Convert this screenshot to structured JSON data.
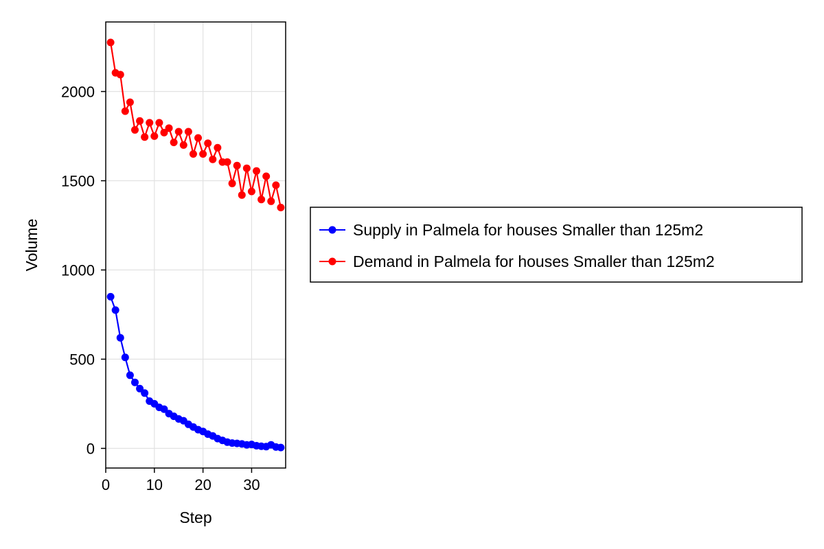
{
  "chart_data": {
    "type": "line",
    "xlabel": "Step",
    "ylabel": "Volume",
    "xlim": [
      0,
      37
    ],
    "ylim": [
      -110,
      2390
    ],
    "xticks": [
      0,
      10,
      20,
      30
    ],
    "yticks": [
      0,
      500,
      1000,
      1500,
      2000
    ],
    "grid": true,
    "legend_position": "right",
    "x": [
      1,
      2,
      3,
      4,
      5,
      6,
      7,
      8,
      9,
      10,
      11,
      12,
      13,
      14,
      15,
      16,
      17,
      18,
      19,
      20,
      21,
      22,
      23,
      24,
      25,
      26,
      27,
      28,
      29,
      30,
      31,
      32,
      33,
      34,
      35,
      36
    ],
    "series": [
      {
        "name": "Supply in Palmela for houses Smaller than 125m2",
        "color": "#0000ff",
        "values": [
          850,
          775,
          620,
          510,
          410,
          370,
          335,
          310,
          265,
          250,
          230,
          220,
          195,
          180,
          165,
          155,
          135,
          120,
          105,
          95,
          80,
          70,
          55,
          45,
          35,
          30,
          28,
          25,
          20,
          22,
          15,
          12,
          10,
          20,
          8,
          5
        ]
      },
      {
        "name": "Demand in Palmela for houses Smaller than 125m2",
        "color": "#ff0000",
        "values": [
          2275,
          2105,
          2095,
          1890,
          1940,
          1785,
          1835,
          1745,
          1825,
          1750,
          1825,
          1770,
          1795,
          1715,
          1775,
          1700,
          1775,
          1650,
          1740,
          1650,
          1710,
          1620,
          1685,
          1605,
          1605,
          1485,
          1585,
          1420,
          1570,
          1440,
          1555,
          1395,
          1525,
          1385,
          1475,
          1350
        ]
      }
    ]
  }
}
